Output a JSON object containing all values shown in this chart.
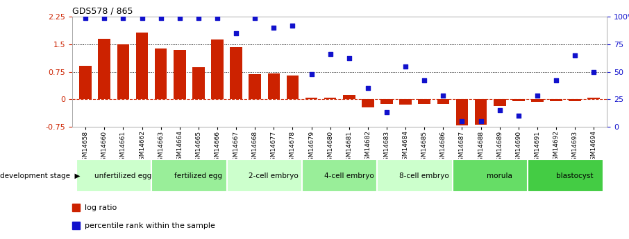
{
  "title": "GDS578 / 865",
  "samples": [
    "GSM14658",
    "GSM14660",
    "GSM14661",
    "GSM14662",
    "GSM14663",
    "GSM14664",
    "GSM14665",
    "GSM14666",
    "GSM14667",
    "GSM14668",
    "GSM14677",
    "GSM14678",
    "GSM14679",
    "GSM14680",
    "GSM14681",
    "GSM14682",
    "GSM14683",
    "GSM14684",
    "GSM14685",
    "GSM14686",
    "GSM14687",
    "GSM14688",
    "GSM14689",
    "GSM14690",
    "GSM14691",
    "GSM14692",
    "GSM14693",
    "GSM14694"
  ],
  "log_ratio": [
    0.92,
    1.65,
    1.5,
    1.82,
    1.38,
    1.35,
    0.88,
    1.62,
    1.42,
    0.68,
    0.7,
    0.65,
    0.05,
    0.05,
    0.12,
    -0.22,
    -0.12,
    -0.15,
    -0.12,
    -0.12,
    -0.72,
    -0.7,
    -0.18,
    -0.05,
    -0.07,
    -0.05,
    -0.05,
    0.05
  ],
  "percentile_rank": [
    99,
    99,
    99,
    99,
    99,
    99,
    99,
    99,
    85,
    99,
    90,
    92,
    48,
    66,
    62,
    35,
    13,
    55,
    42,
    28,
    5,
    5,
    15,
    10,
    28,
    42,
    65,
    50
  ],
  "stages": [
    {
      "label": "unfertilized egg",
      "start": 0,
      "end": 4,
      "color": "#ccffcc"
    },
    {
      "label": "fertilized egg",
      "start": 4,
      "end": 8,
      "color": "#99ee99"
    },
    {
      "label": "2-cell embryo",
      "start": 8,
      "end": 12,
      "color": "#ccffcc"
    },
    {
      "label": "4-cell embryo",
      "start": 12,
      "end": 16,
      "color": "#99ee99"
    },
    {
      "label": "8-cell embryo",
      "start": 16,
      "end": 20,
      "color": "#ccffcc"
    },
    {
      "label": "morula",
      "start": 20,
      "end": 24,
      "color": "#66dd66"
    },
    {
      "label": "blastocyst",
      "start": 24,
      "end": 28,
      "color": "#44cc44"
    }
  ],
  "bar_color": "#cc2200",
  "dot_color": "#1111cc",
  "left_ylim": [
    -0.75,
    2.25
  ],
  "right_ylim": [
    0,
    100
  ],
  "yticks_left": [
    -0.75,
    0,
    0.75,
    1.5,
    2.25
  ],
  "yticks_right": [
    0,
    25,
    50,
    75,
    100
  ],
  "hlines": [
    0.75,
    1.5
  ],
  "zero_line_color": "#cc2200",
  "background_color": "#ffffff"
}
